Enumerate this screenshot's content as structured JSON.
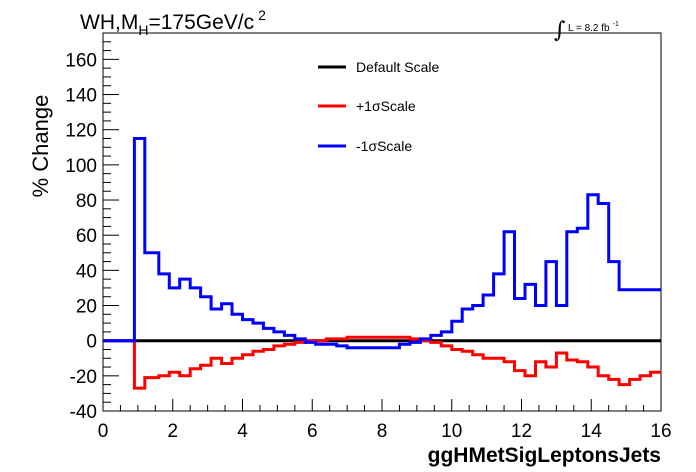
{
  "chart_data": {
    "type": "line",
    "step": true,
    "title": "WH,M",
    "title_sub": "H",
    "title_rest": "=175GeV/c",
    "title_sup": "2",
    "lumi_symbol": "∫",
    "lumi_text": "L = 8.2 fb",
    "lumi_sup": "-1",
    "xlabel": "ggHMetSigLeptonsJets",
    "ylabel": "% Change",
    "xlim": [
      0,
      16
    ],
    "ylim": [
      -40,
      175
    ],
    "xticks": [
      "0",
      "2",
      "4",
      "6",
      "8",
      "10",
      "12",
      "14",
      "16"
    ],
    "yticks": [
      "-40",
      "-20",
      "0",
      "20",
      "40",
      "60",
      "80",
      "100",
      "120",
      "140",
      "160"
    ],
    "legend_position": "top-center",
    "bin_edges": [
      0,
      0.9,
      1.2,
      1.6,
      1.9,
      2.2,
      2.5,
      2.8,
      3.1,
      3.4,
      3.7,
      4.0,
      4.3,
      4.6,
      4.9,
      5.2,
      5.5,
      5.8,
      6.1,
      6.4,
      6.7,
      7.0,
      7.3,
      7.6,
      7.9,
      8.2,
      8.5,
      8.8,
      9.1,
      9.4,
      9.7,
      10.0,
      10.3,
      10.6,
      10.9,
      11.2,
      11.5,
      11.8,
      12.1,
      12.4,
      12.7,
      13.0,
      13.3,
      13.6,
      13.9,
      14.2,
      14.5,
      14.8,
      15.1,
      15.4,
      15.7,
      16.0
    ],
    "series": [
      {
        "name": "Default Scale",
        "color": "#000000",
        "values": [
          0,
          0,
          0,
          0,
          0,
          0,
          0,
          0,
          0,
          0,
          0,
          0,
          0,
          0,
          0,
          0,
          0,
          0,
          0,
          0,
          0,
          0,
          0,
          0,
          0,
          0,
          0,
          0,
          0,
          0,
          0,
          0,
          0,
          0,
          0,
          0,
          0,
          0,
          0,
          0,
          0,
          0,
          0,
          0,
          0,
          0,
          0,
          0,
          0,
          0,
          0
        ]
      },
      {
        "name": "+1σScale",
        "color": "#ff0000",
        "values": [
          0,
          -27,
          -21,
          -20,
          -18,
          -20,
          -16,
          -14,
          -10,
          -13,
          -10,
          -8,
          -6,
          -5,
          -3,
          -2,
          -1,
          0,
          0,
          1,
          1,
          2,
          2,
          2,
          2,
          2,
          2,
          1,
          0,
          -1,
          -3,
          -5,
          -6,
          -8,
          -10,
          -10,
          -12,
          -17,
          -20,
          -12,
          -15,
          -7,
          -11,
          -12,
          -15,
          -20,
          -22,
          -25,
          -22,
          -20,
          -18
        ]
      },
      {
        "name": "-1σScale",
        "color": "#0000ff",
        "values": [
          0,
          115,
          50,
          38,
          30,
          35,
          30,
          25,
          18,
          21,
          15,
          12,
          10,
          7,
          5,
          3,
          1,
          -1,
          -2,
          -2,
          -3,
          -4,
          -4,
          -4,
          -4,
          -4,
          -2,
          -1,
          1,
          3,
          5,
          11,
          18,
          20,
          26,
          38,
          62,
          24,
          32,
          20,
          45,
          20,
          62,
          64,
          83,
          78,
          45,
          29,
          29,
          29,
          29
        ]
      }
    ]
  }
}
